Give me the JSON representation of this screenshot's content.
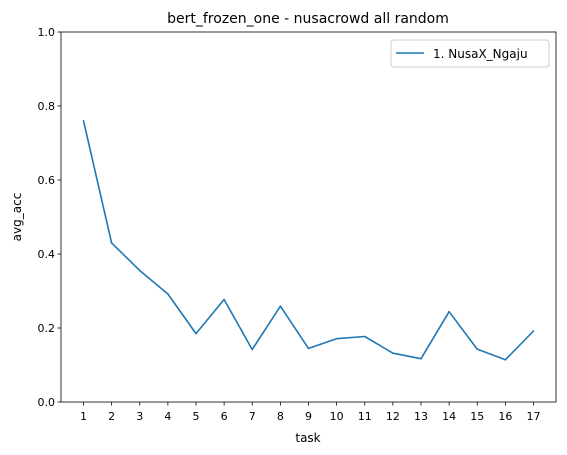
{
  "chart_data": {
    "type": "line",
    "title": "bert_frozen_one - nusacrowd all random",
    "xlabel": "task",
    "ylabel": "avg_acc",
    "x": [
      1,
      2,
      3,
      4,
      5,
      6,
      7,
      8,
      9,
      10,
      11,
      12,
      13,
      14,
      15,
      16,
      17
    ],
    "x_ticks": [
      "1",
      "2",
      "3",
      "4",
      "5",
      "6",
      "7",
      "8",
      "9",
      "10",
      "11",
      "12",
      "13",
      "14",
      "15",
      "16",
      "17"
    ],
    "ylim": [
      0,
      1.0
    ],
    "y_ticks": [
      "0.0",
      "0.2",
      "0.4",
      "0.6",
      "0.8",
      "1.0"
    ],
    "grid": false,
    "legend_position": "top-right",
    "series": [
      {
        "name": "1. NusaX_Ngaju",
        "color": "#1f77b4",
        "values": [
          0.76,
          0.43,
          0.355,
          0.292,
          0.185,
          0.277,
          0.142,
          0.259,
          0.145,
          0.171,
          0.177,
          0.132,
          0.117,
          0.244,
          0.143,
          0.114,
          0.192
        ]
      }
    ]
  }
}
